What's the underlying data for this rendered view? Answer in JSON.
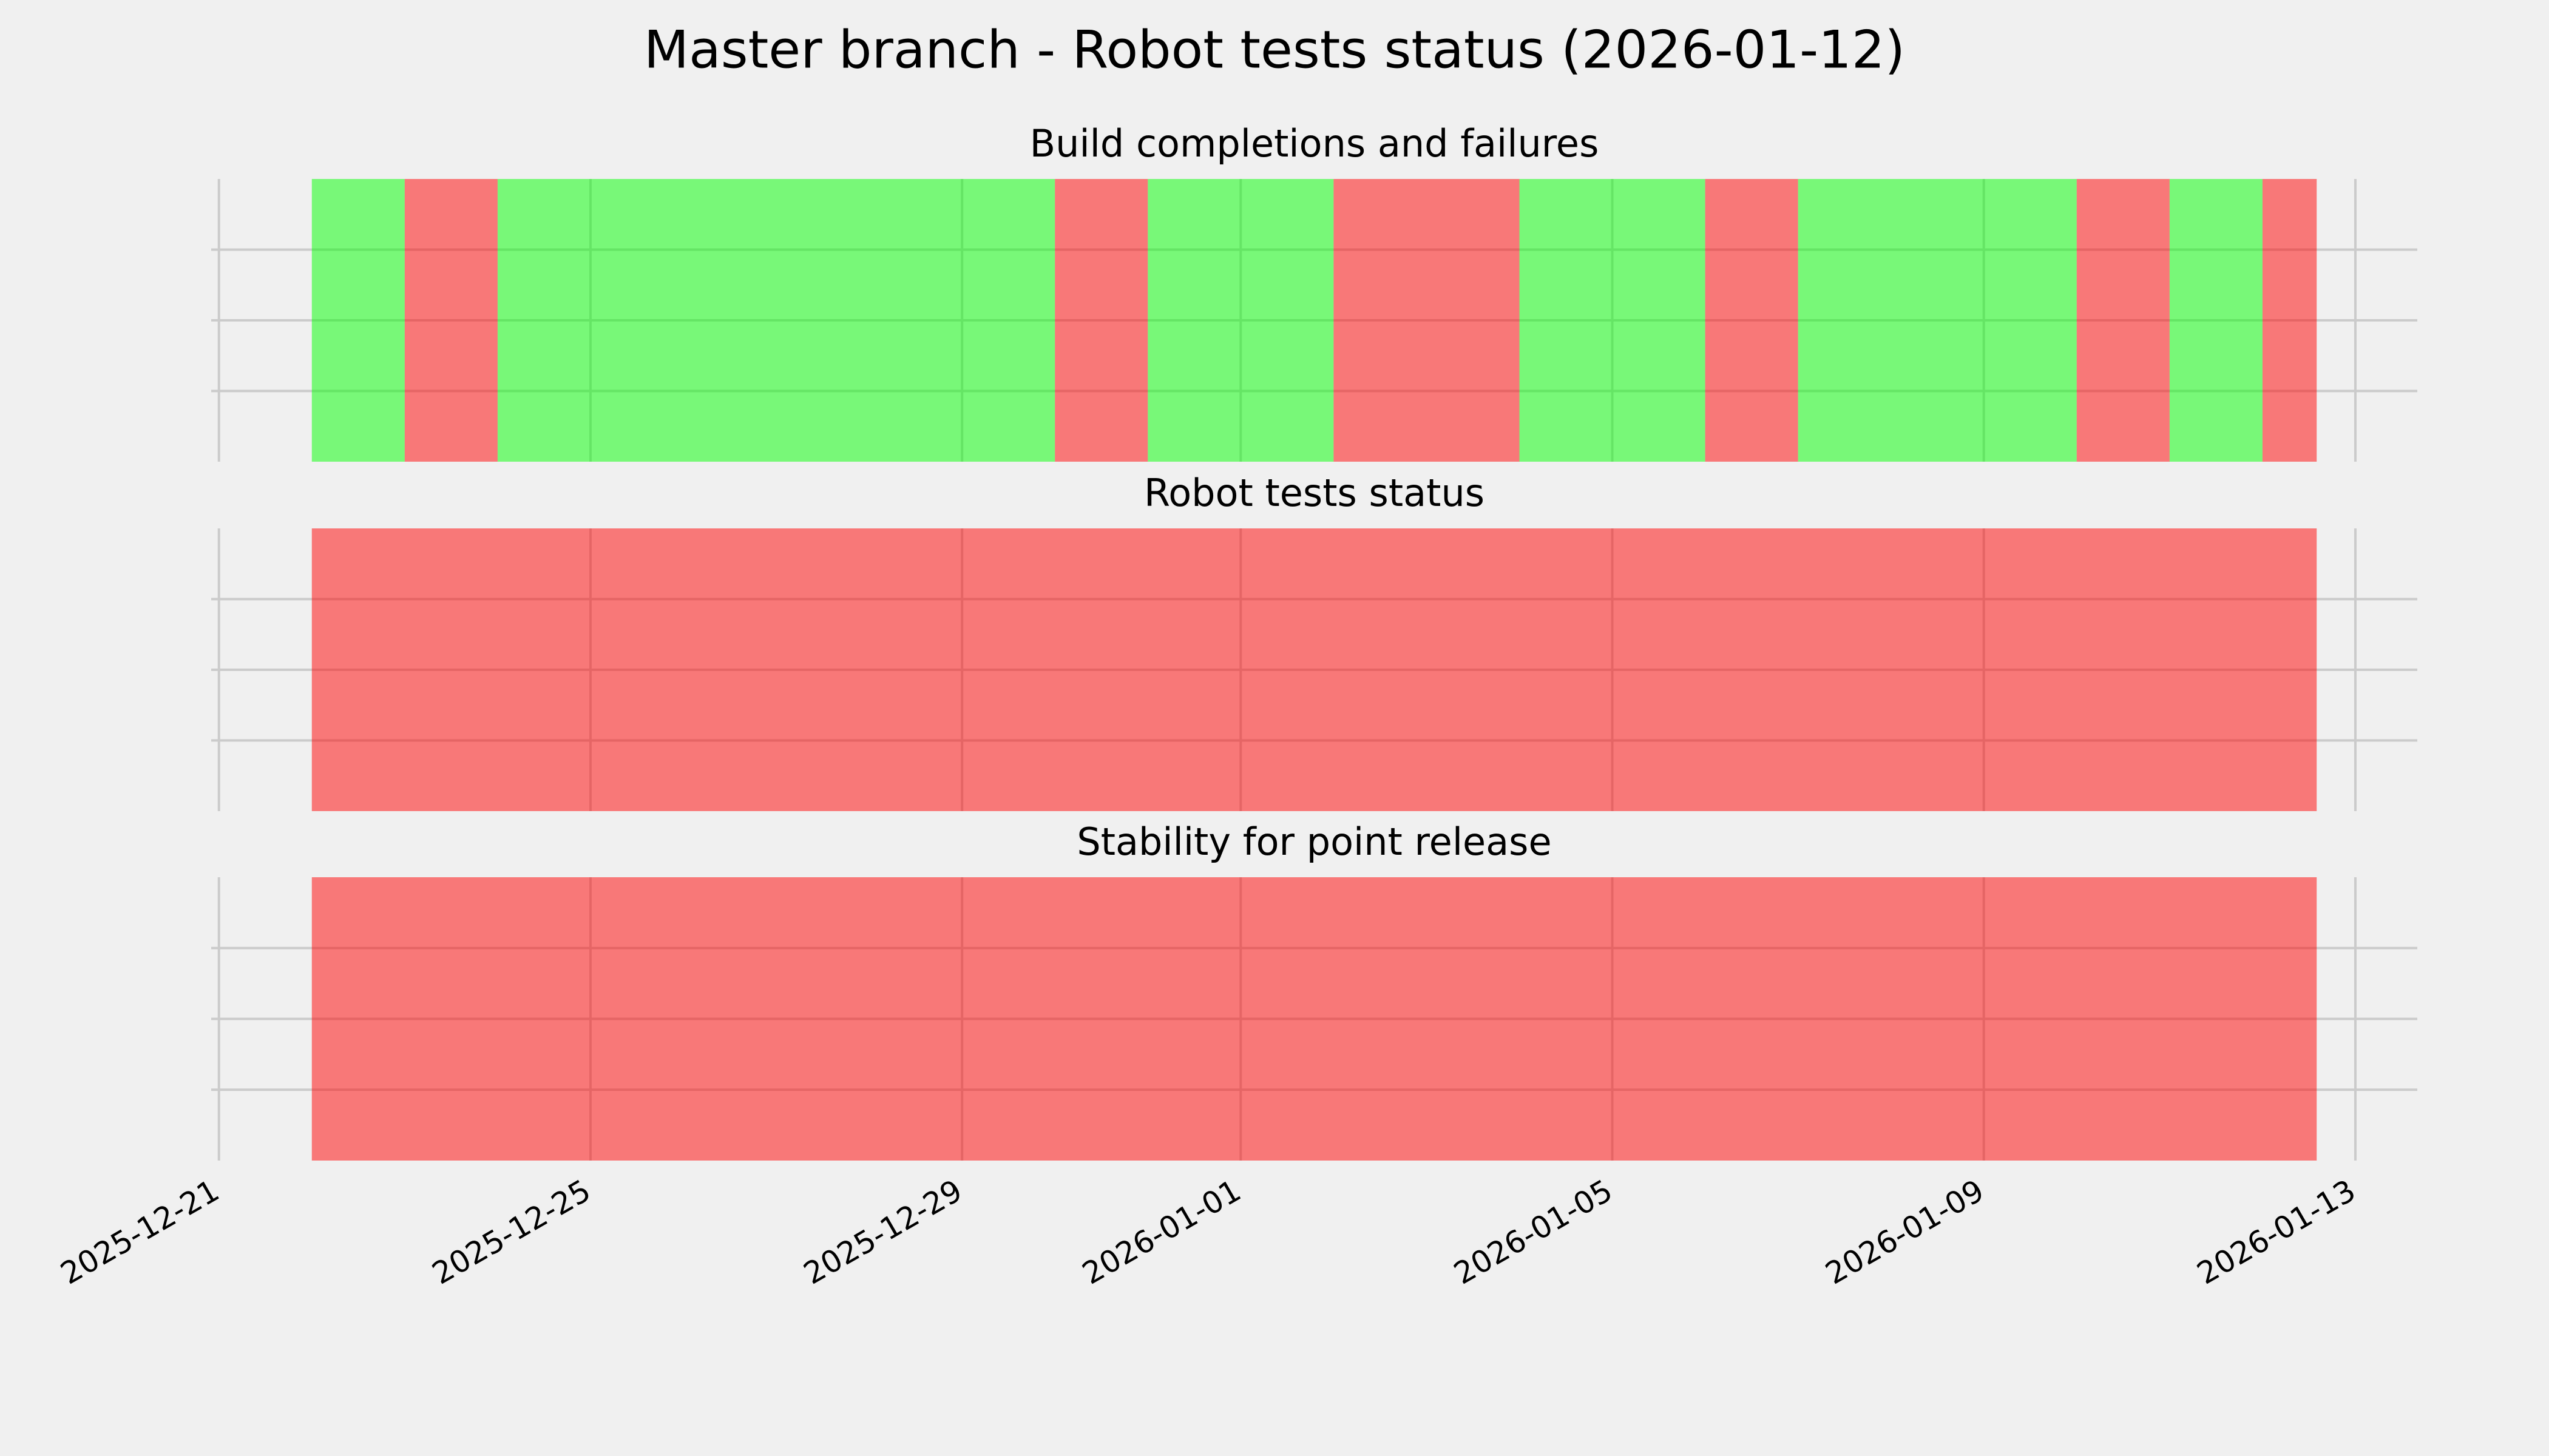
{
  "title": "Master branch - Robot tests status (2026-01-12)",
  "chart_data": [
    {
      "type": "timeline",
      "title": "Build completions and failures",
      "x": [
        "2025-12-22",
        "2025-12-23",
        "2025-12-24",
        "2025-12-30",
        "2025-12-31",
        "2026-01-02",
        "2026-01-04",
        "2026-01-06",
        "2026-01-07",
        "2026-01-10",
        "2026-01-11",
        "2026-01-12",
        "2026-01-12T14:00"
      ],
      "colors": [
        "#00ff00",
        "#ff0000",
        "#00ff00",
        "#ff0000",
        "#00ff00",
        "#ff0000",
        "#00ff00",
        "#ff0000",
        "#00ff00",
        "#ff0000",
        "#00ff00",
        "#ff0000"
      ],
      "alpha": 0.5,
      "xlim": [
        "2025-12-20T22:00",
        "2026-01-13T16:00"
      ],
      "xticks": [
        "2025-12-21",
        "2025-12-25",
        "2025-12-29",
        "2026-01-01",
        "2026-01-05",
        "2026-01-09",
        "2026-01-13"
      ],
      "ylim": [
        0,
        1
      ],
      "yticks": [
        0.25,
        0.5,
        0.75
      ],
      "grid": true
    },
    {
      "type": "timeline",
      "title": "Robot tests status",
      "x": [
        "2025-12-22",
        "2026-01-12T14:00"
      ],
      "colors": [
        "#ff0000"
      ],
      "alpha": 0.5,
      "xlim": [
        "2025-12-20T22:00",
        "2026-01-13T16:00"
      ],
      "xticks": [
        "2025-12-21",
        "2025-12-25",
        "2025-12-29",
        "2026-01-01",
        "2026-01-05",
        "2026-01-09",
        "2026-01-13"
      ],
      "ylim": [
        0,
        1
      ],
      "yticks": [
        0.25,
        0.5,
        0.75
      ],
      "grid": true
    },
    {
      "type": "timeline",
      "title": "Stability for point release",
      "x": [
        "2025-12-22",
        "2026-01-12T14:00"
      ],
      "colors": [
        "#ff0000"
      ],
      "alpha": 0.5,
      "xlim": [
        "2025-12-20T22:00",
        "2026-01-13T16:00"
      ],
      "xticks": [
        "2025-12-21",
        "2025-12-25",
        "2025-12-29",
        "2026-01-01",
        "2026-01-05",
        "2026-01-09",
        "2026-01-13"
      ],
      "ylim": [
        0,
        1
      ],
      "yticks": [
        0.25,
        0.5,
        0.75
      ],
      "grid": true
    }
  ]
}
